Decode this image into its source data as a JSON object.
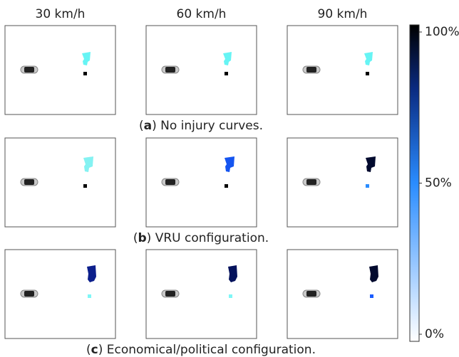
{
  "column_headers": [
    "30 km/h",
    "60 km/h",
    "90 km/h"
  ],
  "captions": [
    [
      "(",
      "a",
      ") No injury curves."
    ],
    [
      "(",
      "b",
      ") VRU configuration."
    ],
    [
      "(",
      "c",
      ") Economical/political configuration."
    ]
  ],
  "panels": [
    [
      {
        "cluster_color": "#66f4f4",
        "pedestrian_color": "#000000"
      },
      {
        "cluster_color": "#66f4f4",
        "pedestrian_color": "#000000"
      },
      {
        "cluster_color": "#66f4f4",
        "pedestrian_color": "#000000"
      }
    ],
    [
      {
        "cluster_color": "#84f2f2",
        "pedestrian_color": "#000000"
      },
      {
        "cluster_color": "#1555f0",
        "pedestrian_color": "#000000"
      },
      {
        "cluster_color": "#020a2e",
        "pedestrian_color": "#2a8cff"
      }
    ],
    [
      {
        "cluster_color": "#0c1f8c",
        "pedestrian_color": "#7ff6f6"
      },
      {
        "cluster_color": "#04125c",
        "pedestrian_color": "#7ff6f6"
      },
      {
        "cluster_color": "#020a2e",
        "pedestrian_color": "#1a5cff"
      }
    ]
  ],
  "colorbar": {
    "ticks": [
      {
        "value": 100,
        "label": "100%"
      },
      {
        "value": 50,
        "label": "50%"
      },
      {
        "value": 0,
        "label": "0%"
      }
    ],
    "lim": [
      0,
      100
    ]
  }
}
